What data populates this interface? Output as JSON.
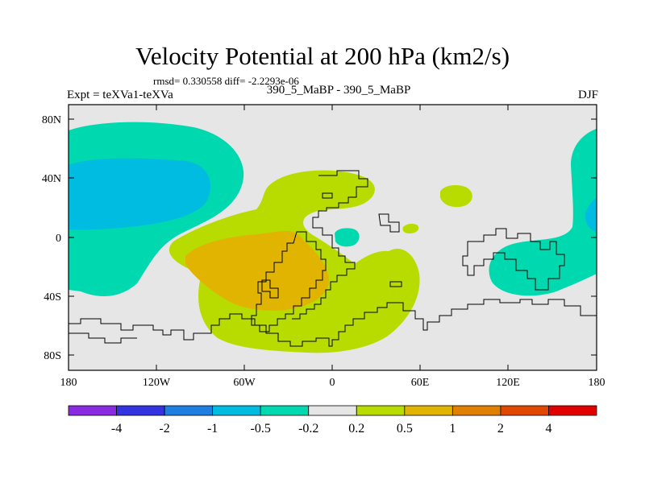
{
  "title": "Velocity Potential at 200 hPa (km2/s)",
  "stats_text": "rmsd= 0.330558  diff= -2.2293e-06",
  "left_label": "Expt = teXVa1-teXVa",
  "center_label": "390_5_MaBP - 390_5_MaBP",
  "right_label": "DJF",
  "lat_ticks": [
    "80N",
    "40N",
    "0",
    "40S",
    "80S"
  ],
  "lon_ticks": [
    "180",
    "120W",
    "60W",
    "0",
    "60E",
    "120E",
    "180"
  ],
  "colorbar": {
    "colors": [
      "#8a2be2",
      "#3333e0",
      "#1e7fe0",
      "#00bce0",
      "#00d8b0",
      "#e6e6e6",
      "#b8dc00",
      "#e0b400",
      "#e08000",
      "#e04800",
      "#e00000"
    ],
    "labels": [
      "-4",
      "-2",
      "-1",
      "-0.5",
      "-0.2",
      "0.2",
      "0.5",
      "1",
      "2",
      "4"
    ]
  },
  "legend_colors": {
    "neutral": "#e6e6e6",
    "neg_weak": "#00d8b0",
    "neg_mid": "#00bce0",
    "pos_weak": "#b8dc00",
    "pos_mid": "#e0b400"
  }
}
